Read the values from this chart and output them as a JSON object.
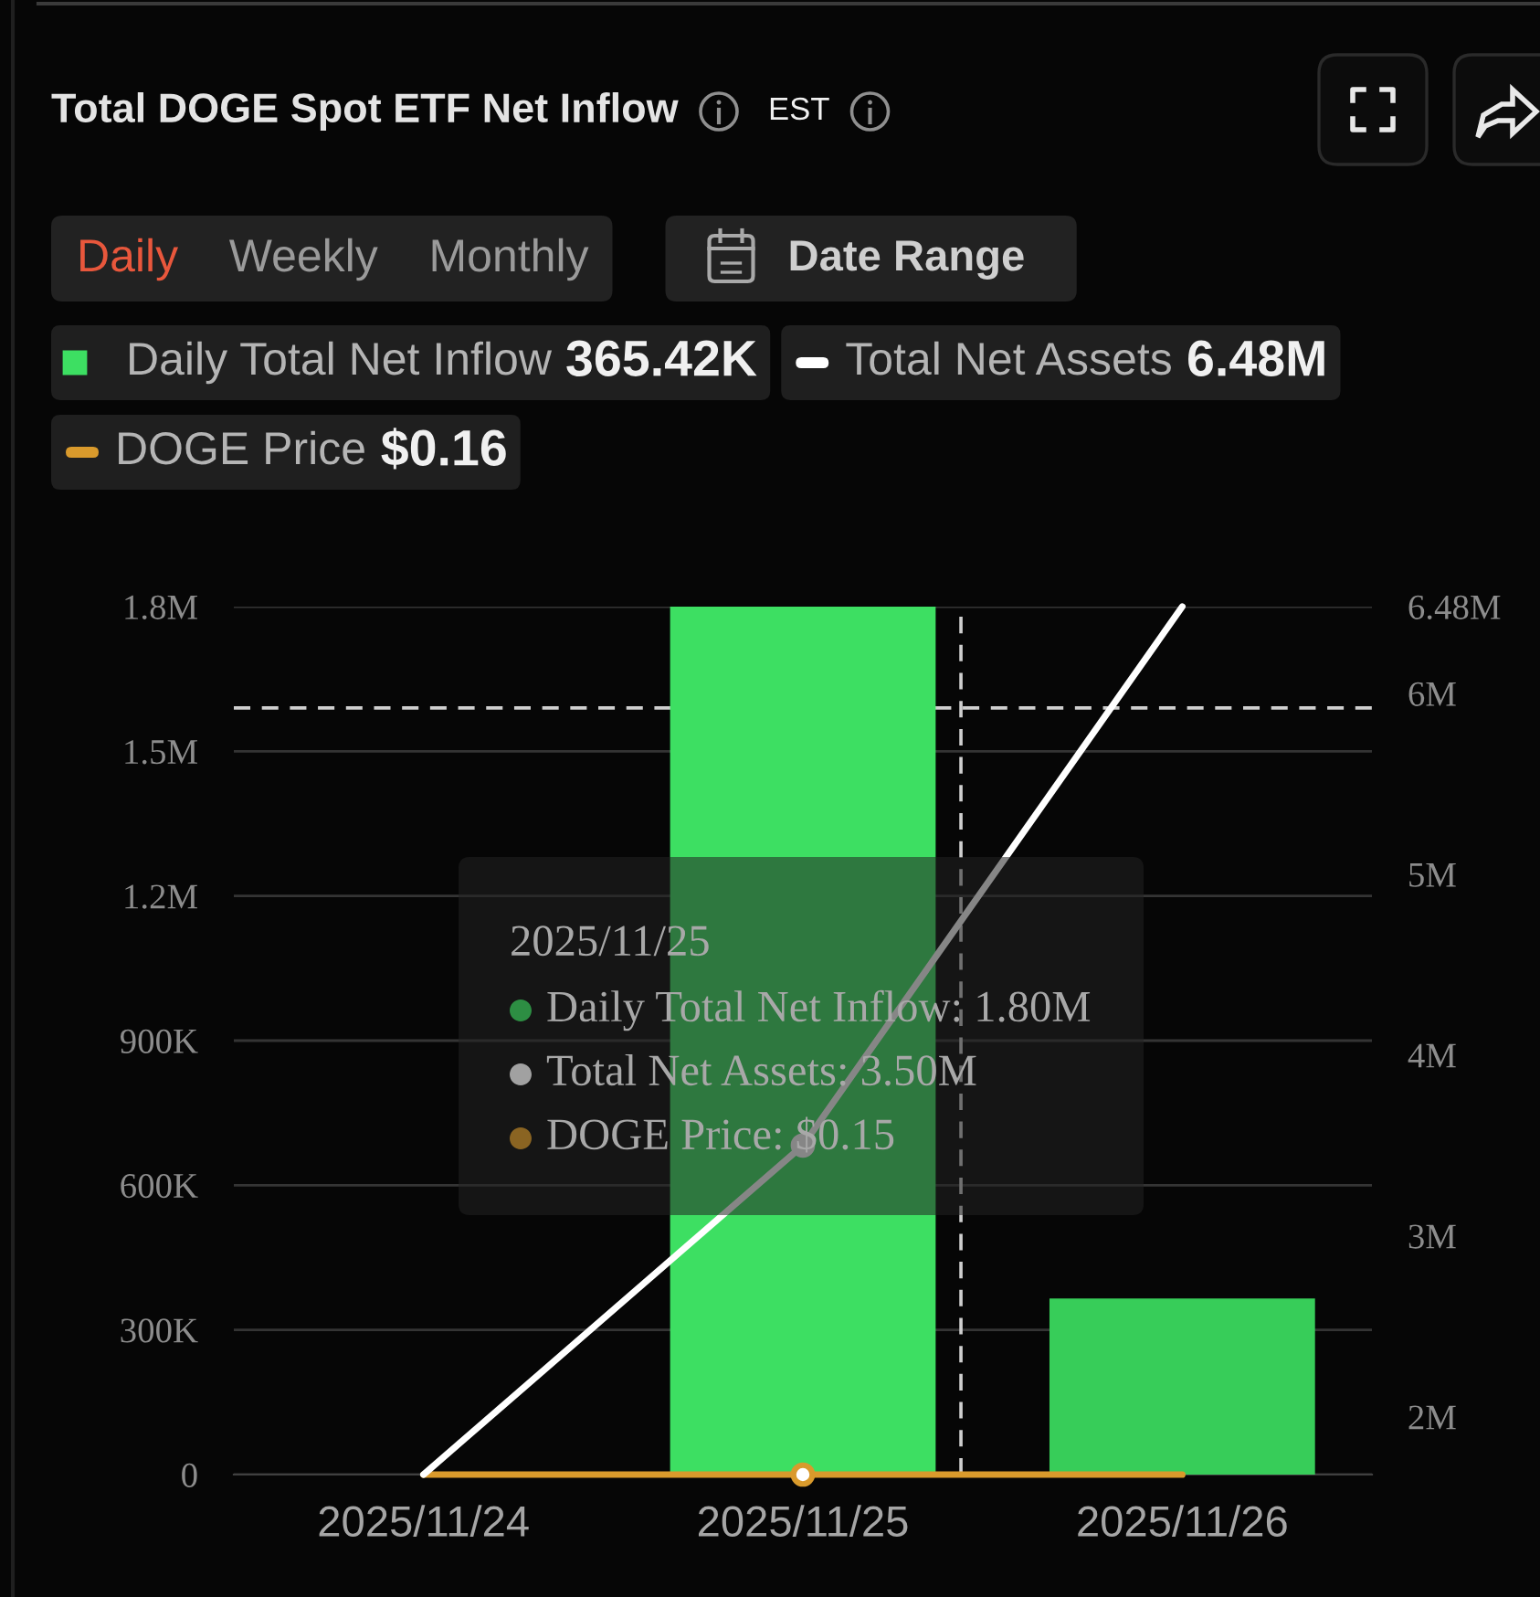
{
  "chart_data": {
    "type": "bar",
    "title": "Total DOGE Spot ETF Net Inflow",
    "subtitle": "EST",
    "x": [
      "2025-11-24",
      "2025-11-25",
      "2025-11-26"
    ],
    "xlim": [
      "2025-11-23T12:00",
      "2025-11-26T12:00"
    ],
    "xticks": [
      {
        "value": "2025-11-24",
        "label": "2025/11/24"
      },
      {
        "value": "2025-11-25",
        "label": "2025/11/25"
      },
      {
        "value": "2025-11-26",
        "label": "2025/11/26"
      }
    ],
    "ylim": [
      0,
      1800000
    ],
    "yticks": [
      0,
      {
        "value": 300000,
        "label": "300K"
      },
      {
        "value": 600000,
        "label": "600K"
      },
      {
        "value": 900000,
        "label": "900K"
      },
      {
        "value": 1200000,
        "label": "1.2M"
      },
      {
        "value": 1500000,
        "label": "1.5M"
      },
      {
        "value": 1800000,
        "label": "1.8M"
      }
    ],
    "y2lim": [
      1680000,
      6480000
    ],
    "y2ticks": [
      {
        "value": 2000000,
        "label": "2M"
      },
      {
        "value": 3000000,
        "label": "3M"
      },
      {
        "value": 4000000,
        "label": "4M"
      },
      {
        "value": 5000000,
        "label": "5M"
      },
      {
        "value": 6000000,
        "label": "6M"
      },
      {
        "value": 6480000,
        "label": "6.48M"
      }
    ],
    "series": [
      {
        "name": "Daily Total Net Inflow",
        "color": "#3ddf62",
        "colors": [
          "#3ddf62",
          "#3ddf62",
          "#37cd59"
        ],
        "values": [
          0,
          1800000,
          365420
        ]
      },
      {
        "name": "Total Net Assets",
        "type": "line",
        "axis": "y2",
        "color": "#ffffff",
        "values": [
          1680000,
          3500000,
          6480000
        ]
      },
      {
        "name": "DOGE Price",
        "type": "line",
        "color": "#d99a2c",
        "values": [
          0.15,
          0.15,
          0.16
        ]
      },
      {
        "type": "scatter",
        "x": [
          "2025-11-25"
        ],
        "color": "#d99a2c",
        "marker": "circle",
        "values": [
          0.15
        ]
      },
      {
        "type": "scatter",
        "axis": "y2",
        "x": [
          "2025-11-25"
        ],
        "color": "#ffffff",
        "marker": "circle",
        "values": [
          3500000
        ]
      }
    ],
    "grid": "y",
    "legend": "top left",
    "ref_lines": [
      {
        "axis": "y",
        "value": 1590000,
        "color": "#cfcfcf",
        "line_style": "dashed"
      },
      {
        "axis": "x",
        "value": "2025-11-25T10:00",
        "color": "#cfcfcf",
        "line_style": "dashed"
      }
    ],
    "annotations": [
      "Daily",
      "Weekly",
      "Monthly",
      "Date Range",
      "365.42K",
      "6.48M",
      "$0.16",
      "2025/11/25",
      "Daily Total Net Inflow: 1.80M",
      "Total Net Assets: 3.50M",
      "DOGE Price: $0.15"
    ]
  }
}
